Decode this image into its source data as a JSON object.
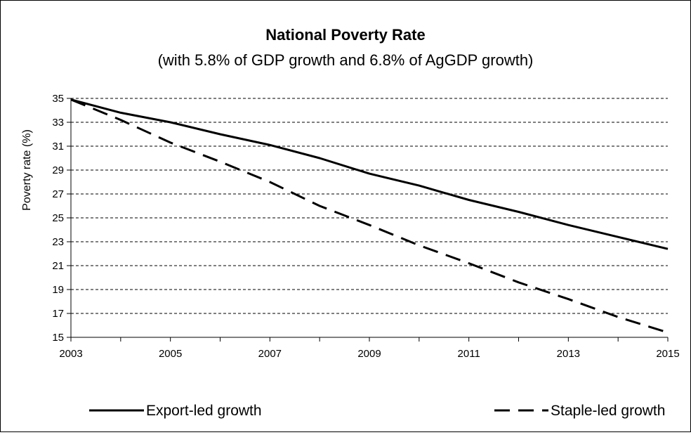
{
  "chart_data": {
    "type": "line",
    "title": "National Poverty Rate",
    "subtitle": "(with 5.8% of GDP growth and 6.8% of AgGDP growth)",
    "xlabel": "",
    "ylabel": "Poverty rate (%)",
    "x": [
      2003,
      2004,
      2005,
      2006,
      2007,
      2008,
      2009,
      2010,
      2011,
      2012,
      2013,
      2014,
      2015
    ],
    "x_tick_labels": [
      "2003",
      "2005",
      "2007",
      "2009",
      "2011",
      "2013",
      "2015"
    ],
    "y_tick_labels": [
      "35",
      "33",
      "31",
      "29",
      "27",
      "25",
      "23",
      "21",
      "19",
      "17",
      "15"
    ],
    "xlim": [
      2003,
      2015
    ],
    "ylim": [
      15,
      35
    ],
    "grid": "horizontal dashed",
    "legend_position": "bottom",
    "series": [
      {
        "name": "Export-led growth",
        "style": "solid",
        "color": "#000000",
        "values": [
          34.9,
          33.8,
          33.0,
          32.0,
          31.1,
          30.0,
          28.7,
          27.7,
          26.5,
          25.5,
          24.4,
          23.4,
          22.4
        ]
      },
      {
        "name": "Staple-led growth",
        "style": "dashed",
        "color": "#000000",
        "values": [
          34.9,
          33.2,
          31.3,
          29.7,
          28.0,
          26.0,
          24.4,
          22.7,
          21.2,
          19.6,
          18.2,
          16.7,
          15.4
        ]
      }
    ]
  }
}
